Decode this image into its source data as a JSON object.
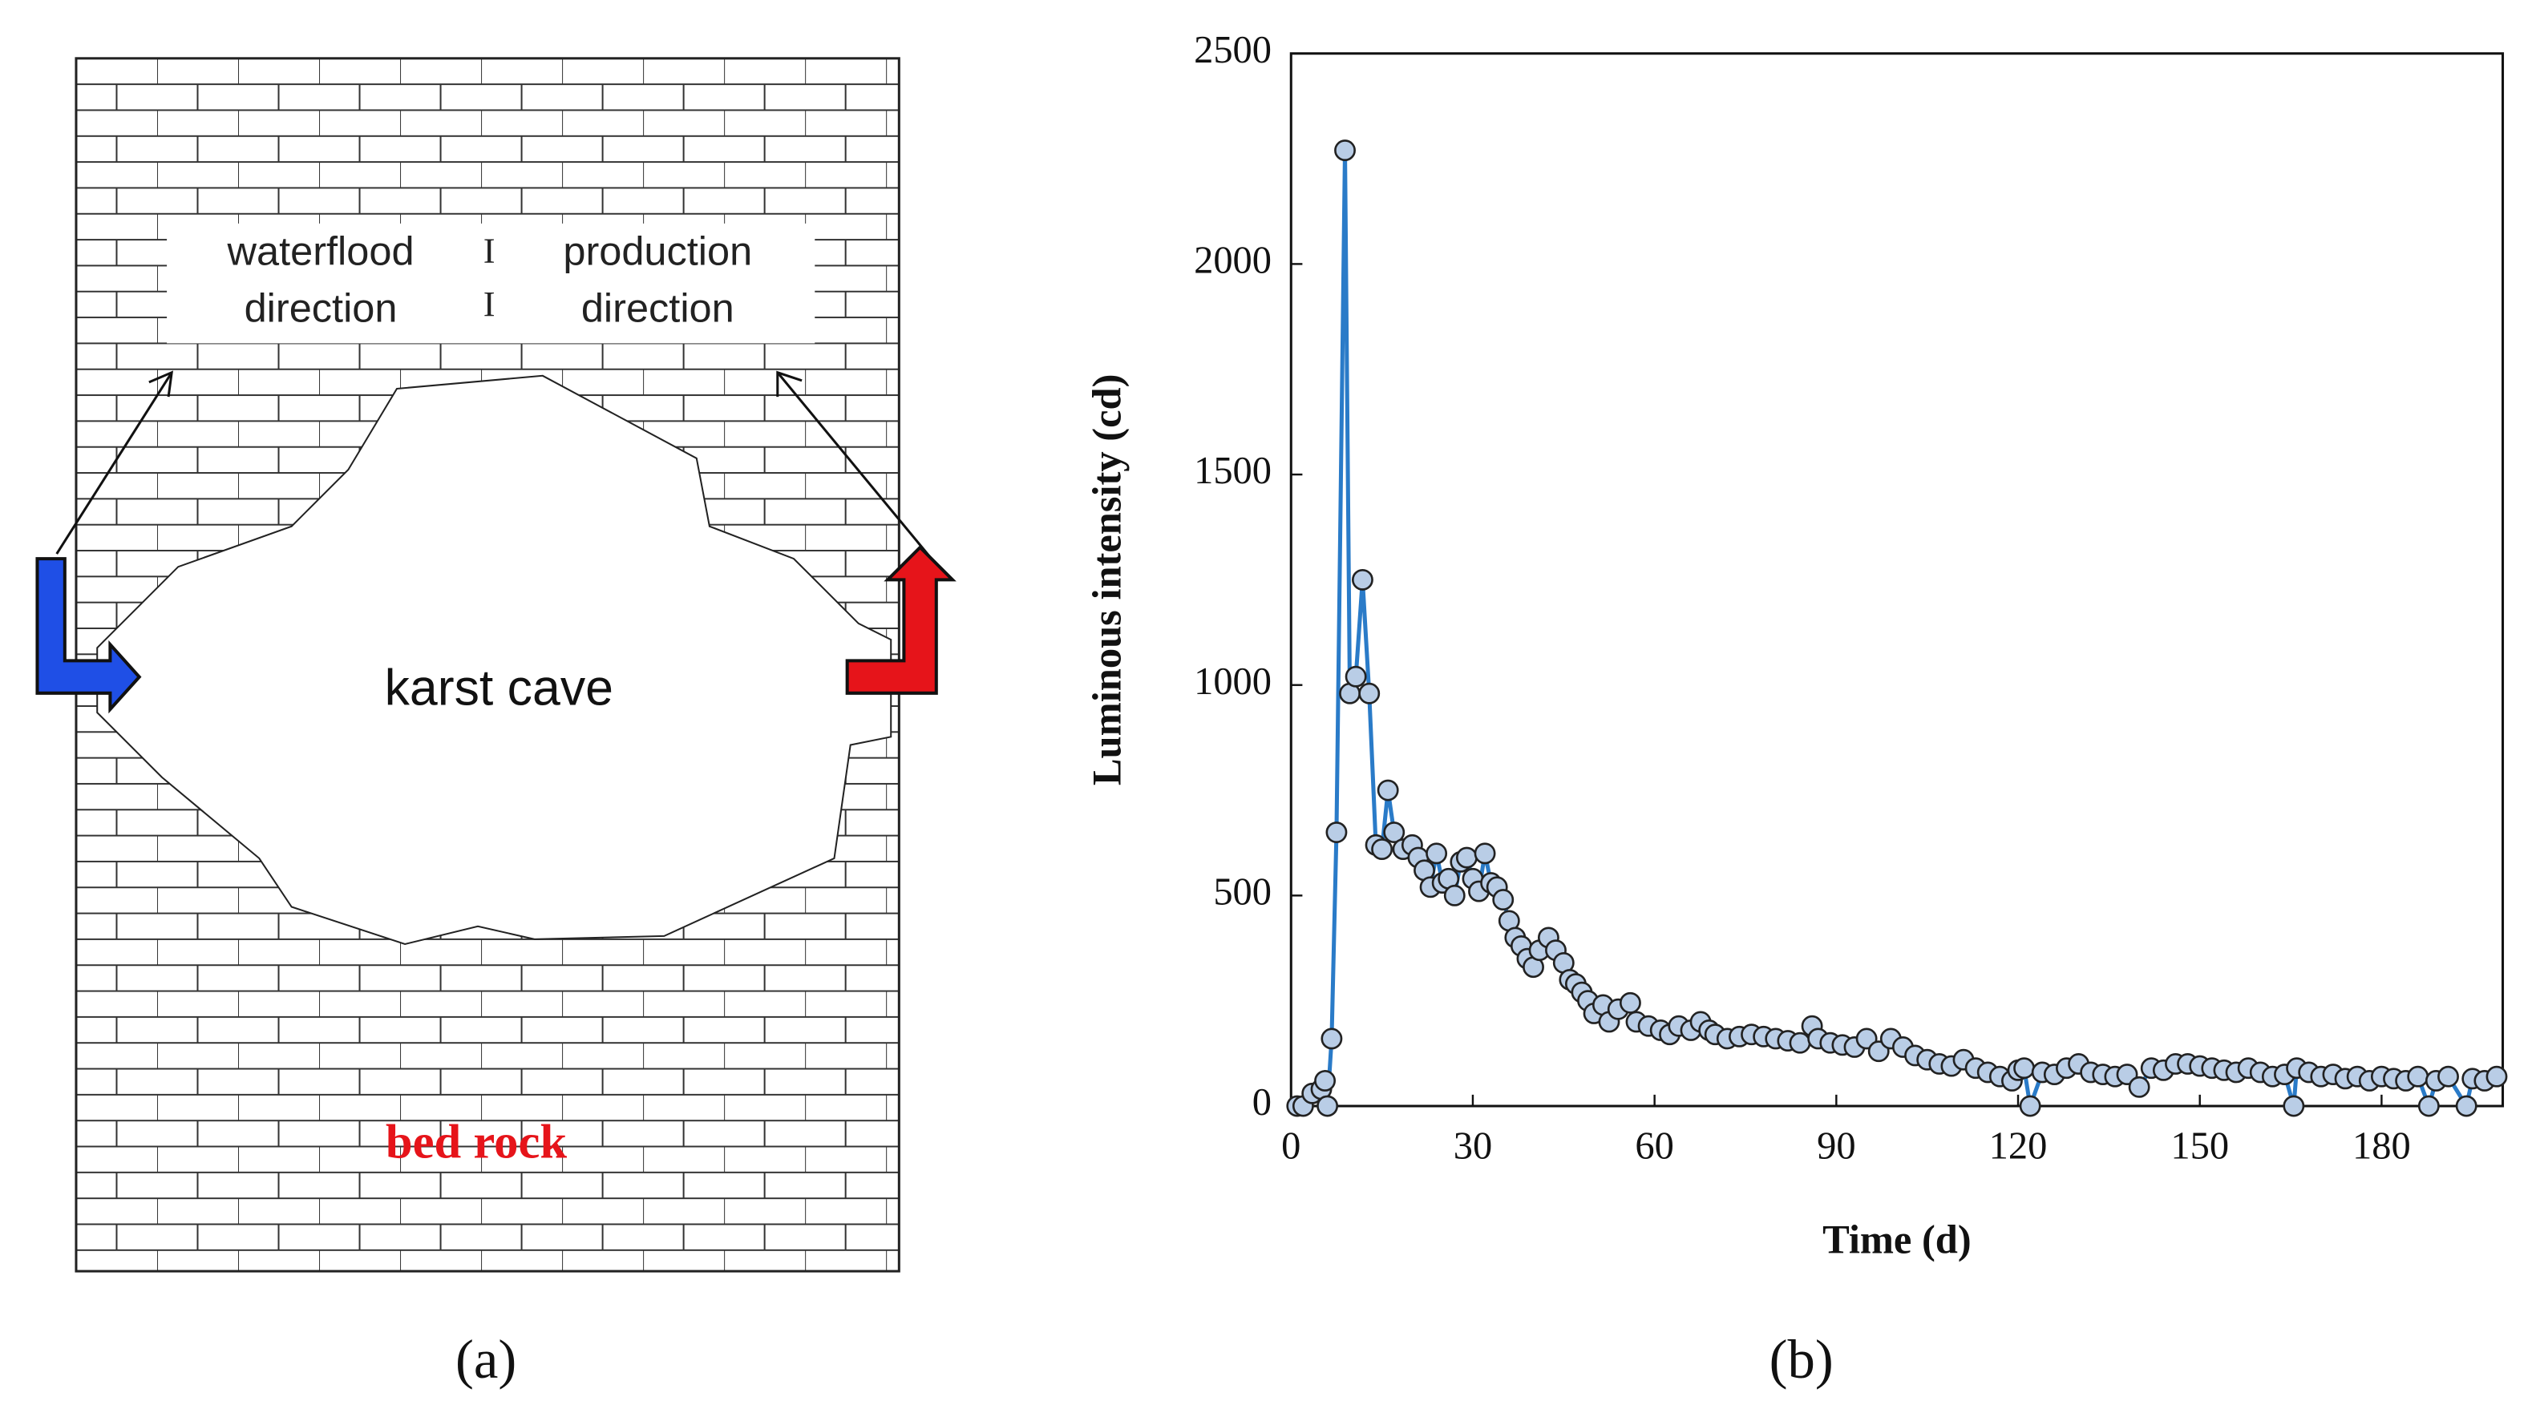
{
  "diagram": {
    "labels": [
      "waterflood",
      "direction",
      "I",
      "production",
      "direction",
      "I",
      "karst cave",
      "bed rock"
    ]
  },
  "panel_labels": [
    "(a)",
    "(b)"
  ],
  "chart_data": {
    "type": "line",
    "xlabel": "Time (d)",
    "ylabel": "Luminous intensity (cd)",
    "x": [
      1,
      2,
      3.5,
      5,
      5.6,
      6,
      6.7,
      7.5,
      8.9,
      9.7,
      10.7,
      11.8,
      12.9,
      14,
      15,
      16,
      17,
      18.5,
      20,
      21,
      22,
      23,
      24,
      25,
      26,
      27,
      28,
      29,
      30,
      31,
      32,
      33,
      34,
      35,
      36,
      37,
      38,
      39,
      40,
      41,
      42.5,
      43.7,
      45,
      46,
      47,
      48,
      49,
      50,
      51.5,
      52.5,
      54,
      56,
      57,
      59,
      61,
      62.5,
      64,
      66,
      67.6,
      69,
      70,
      72,
      74,
      76,
      78,
      80,
      82,
      84,
      86,
      87,
      89,
      91,
      93,
      95,
      97,
      99,
      101,
      103,
      105,
      107,
      109,
      111,
      113,
      115,
      117,
      119,
      120,
      121,
      122,
      124,
      126,
      128,
      130,
      132,
      134,
      136,
      138,
      140,
      142,
      144,
      146,
      148,
      150,
      152,
      154,
      156,
      158,
      160,
      162,
      164,
      165.5,
      166,
      168,
      170,
      172,
      174,
      176,
      178,
      180,
      182,
      184,
      186,
      187.8,
      189,
      191,
      194,
      195,
      197,
      199
    ],
    "values": [
      0,
      0,
      30,
      40,
      60,
      0,
      160,
      650,
      2270,
      980,
      1020,
      1250,
      980,
      620,
      610,
      750,
      650,
      610,
      620,
      590,
      560,
      520,
      600,
      530,
      540,
      500,
      580,
      590,
      540,
      510,
      600,
      530,
      520,
      490,
      440,
      400,
      380,
      350,
      330,
      370,
      400,
      370,
      340,
      300,
      290,
      270,
      250,
      220,
      240,
      200,
      230,
      245,
      200,
      190,
      180,
      170,
      190,
      180,
      200,
      180,
      170,
      160,
      165,
      170,
      165,
      160,
      155,
      150,
      190,
      160,
      150,
      145,
      140,
      160,
      130,
      160,
      140,
      120,
      110,
      100,
      95,
      110,
      90,
      80,
      70,
      60,
      85,
      90,
      0,
      80,
      75,
      90,
      100,
      80,
      75,
      70,
      75,
      45,
      90,
      85,
      100,
      100,
      95,
      90,
      85,
      80,
      90,
      80,
      70,
      75,
      0,
      90,
      80,
      70,
      75,
      65,
      70,
      60,
      70,
      65,
      60,
      70,
      0,
      60,
      70,
      0,
      65,
      60,
      70
    ],
    "color": "#2a7bc8",
    "marker_color": "#b9cde6",
    "xlim": [
      0,
      200
    ],
    "ylim": [
      0,
      2500
    ],
    "xticks": [
      0,
      30,
      60,
      90,
      120,
      150,
      180
    ],
    "yticks": [
      0,
      500,
      1000,
      1500,
      2000,
      2500
    ]
  }
}
